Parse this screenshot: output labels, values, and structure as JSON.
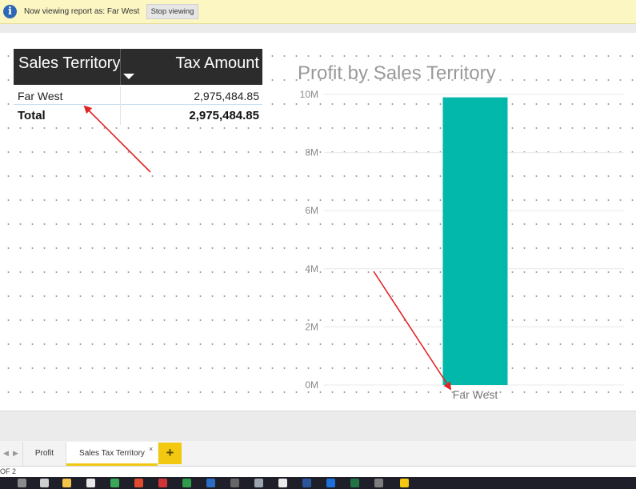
{
  "infobar": {
    "icon": "info-icon",
    "message": "Now viewing report as: Far West",
    "stop_label": "Stop viewing"
  },
  "table": {
    "headers": [
      "Sales Territory",
      "Tax Amount"
    ],
    "rows": [
      {
        "territory": "Far West",
        "tax": "2,975,484.85"
      }
    ],
    "total": {
      "label": "Total",
      "value": "2,975,484.85"
    },
    "header_bg": "#2c2c2c"
  },
  "chart_data": {
    "type": "bar",
    "title": "Profit by Sales Territory",
    "categories": [
      "Far West"
    ],
    "values": [
      9900000
    ],
    "ylim": [
      0,
      10000000
    ],
    "yticks": [
      {
        "value": 0,
        "label": "0M"
      },
      {
        "value": 2000000,
        "label": "2M"
      },
      {
        "value": 4000000,
        "label": "4M"
      },
      {
        "value": 6000000,
        "label": "6M"
      },
      {
        "value": 8000000,
        "label": "8M"
      },
      {
        "value": 10000000,
        "label": "10M"
      }
    ],
    "bar_color": "#01b8aa",
    "grid": true,
    "xlabel": "",
    "ylabel": ""
  },
  "tabs": {
    "items": [
      "Profit",
      "Sales Tax Territory"
    ],
    "active_index": 1,
    "close_glyph": "×",
    "add_glyph": "+",
    "prev_glyph": "◀",
    "next_glyph": "▶"
  },
  "status": {
    "page_text": "OF 2"
  },
  "colors": {
    "annotation_arrow": "#e02424",
    "accent": "#f2c811"
  }
}
